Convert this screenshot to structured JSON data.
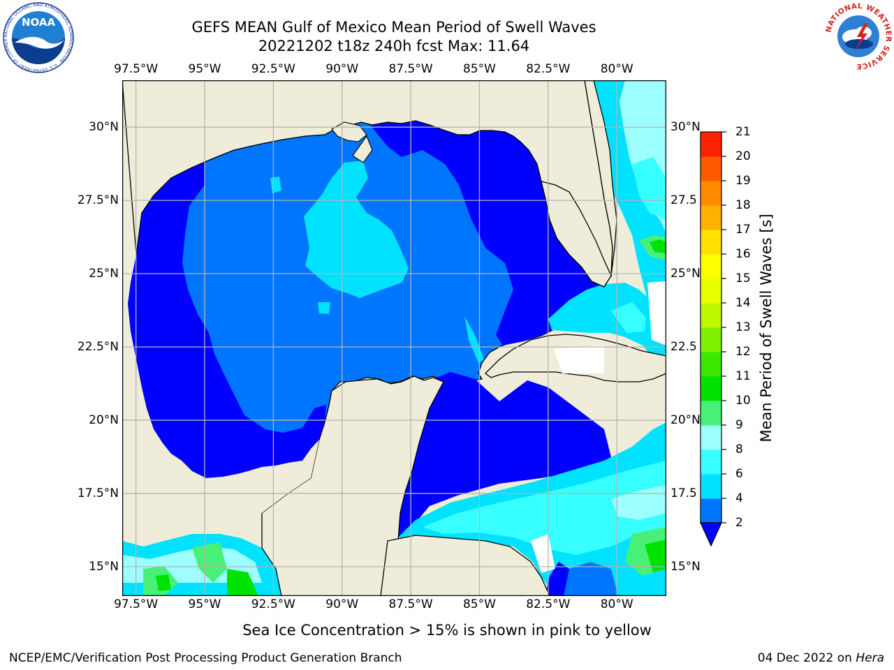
{
  "title": "GEFS MEAN Gulf of Mexico Mean Period of Swell Waves",
  "subtitle": "20221202 t18z 240h fcst   Max: 11.64",
  "map": {
    "lon_ticks": [
      "97.5°W",
      "95°W",
      "92.5°W",
      "90°W",
      "87.5°W",
      "85°W",
      "82.5°W",
      "80°W"
    ],
    "lon_values": [
      -97.5,
      -95,
      -92.5,
      -90,
      -87.5,
      -85,
      -82.5,
      -80
    ],
    "lat_ticks_left": [
      "30°N",
      "27.5°N",
      "25°N",
      "22.5°N",
      "20°N",
      "17.5°N",
      "15°N"
    ],
    "lat_ticks_right": [
      "30°N",
      "27.5",
      "25°N",
      "22.5",
      "20°N",
      "17.5",
      "15°N"
    ],
    "lat_values": [
      30,
      27.5,
      25,
      22.5,
      20,
      17.5,
      15
    ],
    "lon_range": [
      -98,
      -78.2
    ],
    "lat_range": [
      14,
      31.6
    ],
    "grid": true,
    "land_color": "#efedda",
    "coast_color": "#000000"
  },
  "colorbar": {
    "label": "Mean Period of Swell Waves [s]",
    "ticks": [
      "2",
      "4",
      "6",
      "8",
      "9",
      "10",
      "11",
      "12",
      "13",
      "14",
      "15",
      "16",
      "17",
      "18",
      "19",
      "20",
      "21"
    ],
    "levels": [
      2,
      4,
      6,
      8,
      9,
      10,
      11,
      12,
      13,
      14,
      15,
      16,
      17,
      18,
      19,
      20,
      21
    ],
    "colors": [
      "#0076ff",
      "#00e2ff",
      "#38ffff",
      "#9effff",
      "#48f078",
      "#00e300",
      "#3ce800",
      "#7ff000",
      "#c0f800",
      "#e8ff00",
      "#ffff00",
      "#ffe000",
      "#ffb200",
      "#ff8a00",
      "#ff5a00",
      "#ff2200",
      "#ff0000"
    ],
    "under_color": "#0000ff",
    "extend": "min"
  },
  "subnote": "Sea Ice Concentration > 15% is shown in pink to yellow",
  "footer": {
    "left": "NCEP/EMC/Verification Post Processing Product Generation Branch",
    "date": "04 Dec 2022 on ",
    "host": "Hera"
  },
  "logos": {
    "noaa": "NOAA",
    "noaa_ring": "NATIONAL OCEANIC AND ATMOSPHERIC ADMINISTRATION · U.S. DEPARTMENT OF COMMERCE",
    "nws_ring": "NATIONAL WEATHER SERVICE"
  }
}
